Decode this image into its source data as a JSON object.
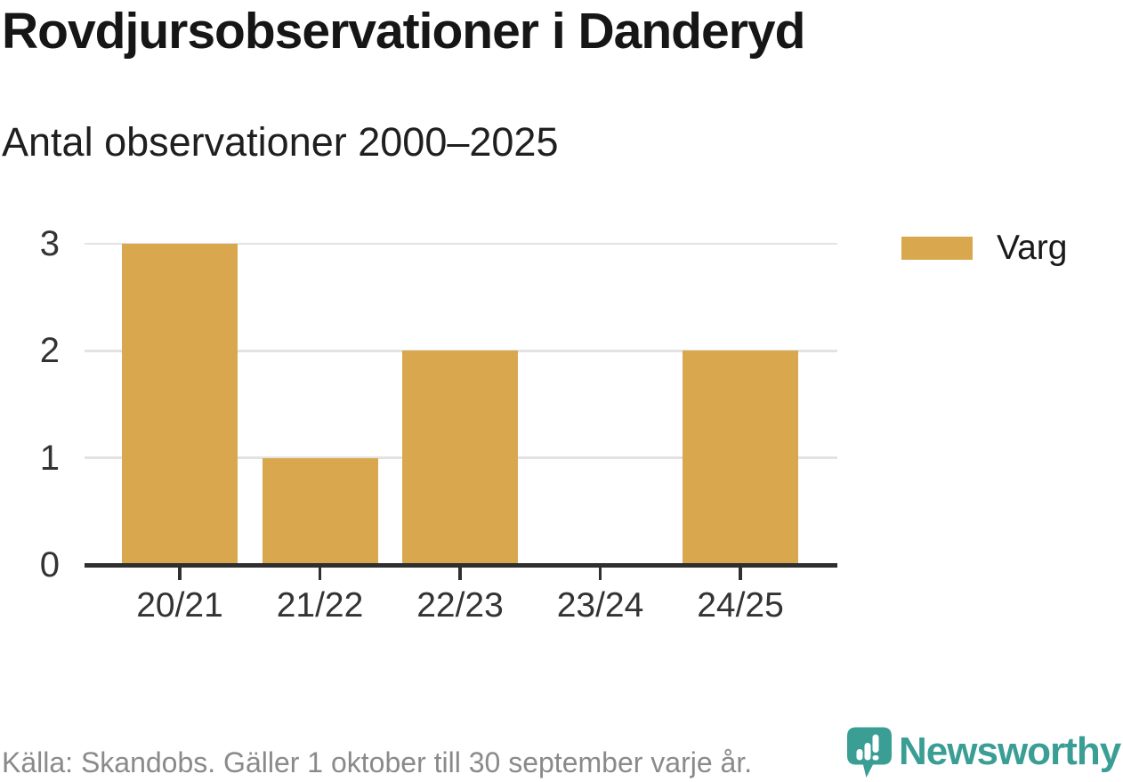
{
  "title": "Rovdjursobservationer i Danderyd",
  "subtitle": "Antal observationer 2000–2025",
  "legend": {
    "label": "Varg",
    "swatch_color": "#d9a84e"
  },
  "footer": {
    "source": "Källa: Skandobs. Gäller 1 oktober till 30 september varje år.",
    "brand": "Newsworthy"
  },
  "colors": {
    "bar": "#d9a84e",
    "axis": "#2f2f2f",
    "grid": "#e3e3e3",
    "title_text": "#161616",
    "tick_text": "#333333",
    "muted_text": "#8a8a8a",
    "brand_teal": "#3a9e95"
  },
  "chart_data": {
    "type": "bar",
    "title": "Rovdjursobservationer i Danderyd",
    "subtitle": "Antal observationer 2000–2025",
    "categories": [
      "20/21",
      "21/22",
      "22/23",
      "23/24",
      "24/25"
    ],
    "series": [
      {
        "name": "Varg",
        "values": [
          3,
          1,
          2,
          0,
          2
        ]
      }
    ],
    "xlabel": "",
    "ylabel": "",
    "ylim": [
      0,
      3
    ],
    "yticks": [
      0,
      1,
      2,
      3
    ],
    "grid": true,
    "legend_position": "top-right",
    "bar_color": "#d9a84e",
    "source": "Skandobs"
  }
}
